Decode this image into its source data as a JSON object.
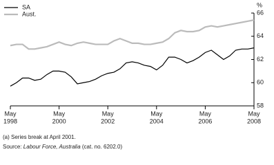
{
  "chart_data": {
    "type": "line",
    "y_label": "%",
    "x": [
      "1998-05",
      "1998-08",
      "1998-11",
      "1999-02",
      "1999-05",
      "1999-08",
      "1999-11",
      "2000-02",
      "2000-05",
      "2000-08",
      "2000-11",
      "2001-02",
      "2001-05",
      "2001-08",
      "2001-11",
      "2002-02",
      "2002-05",
      "2002-08",
      "2002-11",
      "2003-02",
      "2003-05",
      "2003-08",
      "2003-11",
      "2004-02",
      "2004-05",
      "2004-08",
      "2004-11",
      "2005-02",
      "2005-05",
      "2005-08",
      "2005-11",
      "2006-02",
      "2006-05",
      "2006-08",
      "2006-11",
      "2007-02",
      "2007-05",
      "2007-08",
      "2007-11",
      "2008-02",
      "2008-05"
    ],
    "series": [
      {
        "name": "SA",
        "color": "#000000",
        "values": [
          59.7,
          60.0,
          60.4,
          60.4,
          60.2,
          60.3,
          60.7,
          61.0,
          61.0,
          60.9,
          60.5,
          59.9,
          60.0,
          60.1,
          60.3,
          60.6,
          60.8,
          60.9,
          61.2,
          61.7,
          61.8,
          61.7,
          61.5,
          61.4,
          61.1,
          61.5,
          62.2,
          62.2,
          62.0,
          61.7,
          61.9,
          62.2,
          62.6,
          62.8,
          62.4,
          62.0,
          62.3,
          62.8,
          62.9,
          62.9,
          63.0
        ]
      },
      {
        "name": "Aust.",
        "color": "#bbbbbb",
        "values": [
          63.2,
          63.3,
          63.3,
          62.9,
          62.9,
          63.0,
          63.1,
          63.3,
          63.5,
          63.3,
          63.2,
          63.4,
          63.5,
          63.4,
          63.3,
          63.3,
          63.3,
          63.6,
          63.8,
          63.6,
          63.4,
          63.4,
          63.3,
          63.3,
          63.4,
          63.5,
          63.8,
          64.3,
          64.5,
          64.4,
          64.4,
          64.5,
          64.8,
          64.9,
          64.8,
          64.9,
          65.0,
          65.1,
          65.2,
          65.3,
          65.4
        ]
      }
    ],
    "xlim": [
      "1998-05",
      "2008-05"
    ],
    "xticks": [
      {
        "value": "1998-05",
        "label": [
          "May",
          "1998"
        ]
      },
      {
        "value": "2000-05",
        "label": [
          "May",
          "2000"
        ]
      },
      {
        "value": "2002-05",
        "label": [
          "May",
          "2002"
        ]
      },
      {
        "value": "2004-05",
        "label": [
          "May",
          "2004"
        ]
      },
      {
        "value": "2006-05",
        "label": [
          "May",
          "2006"
        ]
      },
      {
        "value": "2008-05",
        "label": [
          "May",
          "2008"
        ]
      }
    ],
    "ylim": [
      58,
      66
    ],
    "yticks": [
      58,
      60,
      62,
      64,
      66
    ],
    "notes": [
      "(a) Series break at April 2001."
    ],
    "source": {
      "prefix": "Source: ",
      "title": "Labour Force, Australia",
      "suffix": " (cat. no. 6202.0)"
    }
  }
}
